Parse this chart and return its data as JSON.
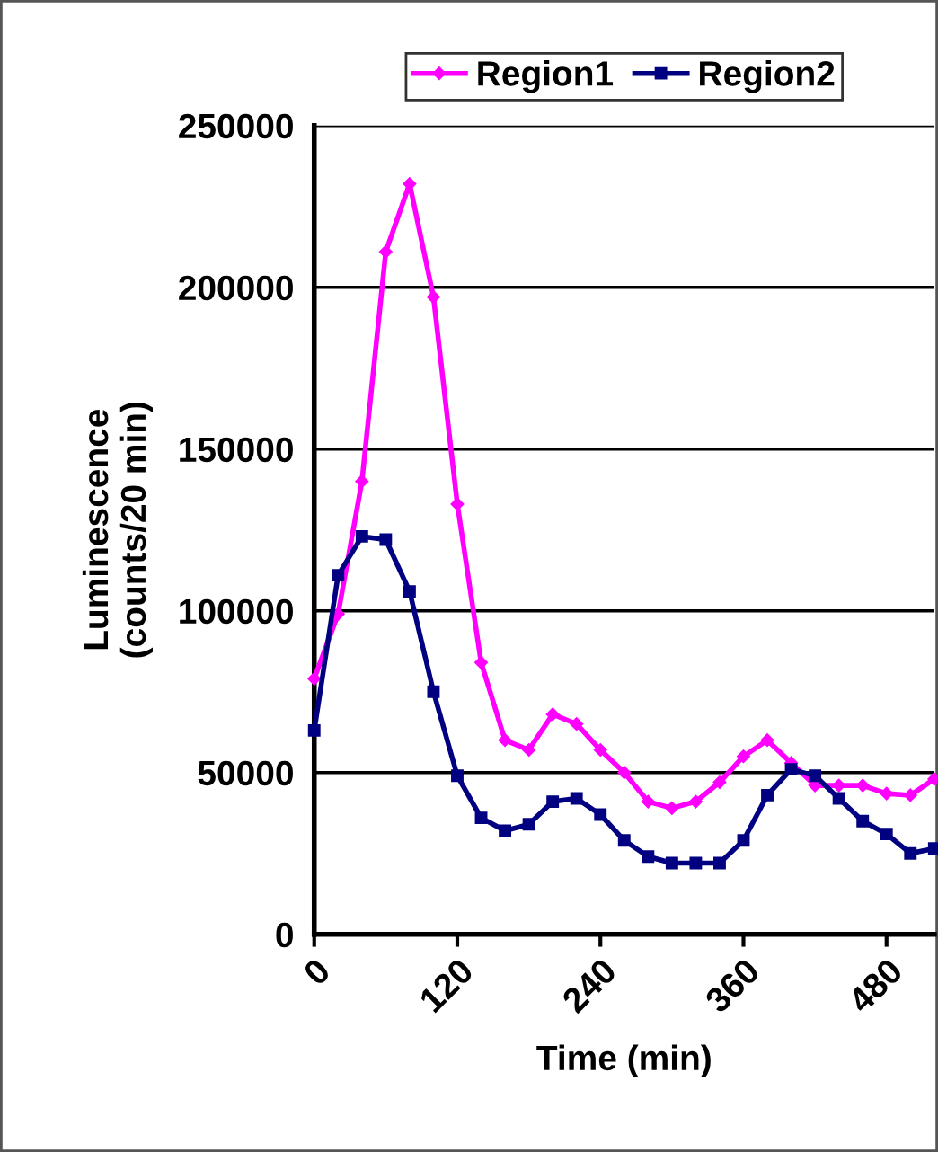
{
  "chart_data": {
    "type": "line",
    "xlabel": "Time (min)",
    "ylabel": "Luminescence\n(counts/20 min)",
    "x": [
      0,
      20,
      40,
      60,
      80,
      100,
      120,
      140,
      160,
      180,
      200,
      220,
      240,
      260,
      280,
      300,
      320,
      340,
      360,
      380,
      400,
      420,
      440,
      460,
      480,
      500,
      520
    ],
    "series": [
      {
        "name": "Region1",
        "color": "#ff00ff",
        "marker": "diamond",
        "values": [
          79000,
          99000,
          140000,
          211000,
          232000,
          197000,
          133000,
          84000,
          60000,
          57000,
          68000,
          65000,
          57000,
          50000,
          41000,
          39000,
          41000,
          47000,
          55000,
          60000,
          53000,
          46000,
          46000,
          46000,
          43500,
          43000,
          48000
        ]
      },
      {
        "name": "Region2",
        "color": "#000080",
        "marker": "square",
        "values": [
          63000,
          111000,
          123000,
          122000,
          106000,
          75000,
          49000,
          36000,
          32000,
          34000,
          41000,
          42000,
          37000,
          29000,
          24000,
          22000,
          22000,
          22000,
          29000,
          43000,
          51000,
          49000,
          42000,
          35000,
          31000,
          25000,
          26500
        ]
      }
    ],
    "xlim": [
      0,
      520
    ],
    "xticks": [
      0,
      120,
      240,
      360,
      480
    ],
    "ylim": [
      0,
      250000
    ],
    "yticks": [
      0,
      50000,
      100000,
      150000,
      200000,
      250000
    ],
    "grid": "y",
    "legend": "top",
    "line_style": "solid"
  }
}
